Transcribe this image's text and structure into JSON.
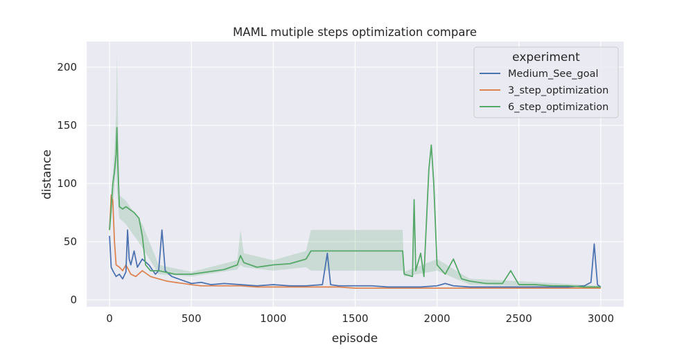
{
  "chart_data": {
    "type": "line",
    "title": "MAML mutiple steps optimization compare",
    "xlabel": "episode",
    "ylabel": "distance",
    "xlim": [
      -140,
      3140
    ],
    "ylim": [
      -6,
      222
    ],
    "xticks": [
      0,
      500,
      1000,
      1500,
      2000,
      2500,
      3000
    ],
    "yticks": [
      0,
      50,
      100,
      150,
      200
    ],
    "grid": true,
    "background": "#eaeaf2",
    "legend": {
      "title": "experiment",
      "placement": "top-right"
    },
    "series": [
      {
        "name": "Medium_See_goal",
        "color": "#4c72b0",
        "x": [
          0,
          10,
          20,
          40,
          60,
          80,
          100,
          110,
          120,
          130,
          150,
          170,
          200,
          240,
          280,
          300,
          320,
          340,
          380,
          420,
          460,
          500,
          560,
          620,
          700,
          800,
          900,
          1000,
          1100,
          1200,
          1300,
          1330,
          1350,
          1400,
          1450,
          1500,
          1600,
          1700,
          1800,
          1900,
          2000,
          2050,
          2100,
          2200,
          2300,
          2400,
          2500,
          2600,
          2700,
          2800,
          2900,
          2940,
          2960,
          2970,
          2980,
          3000
        ],
        "y": [
          55,
          28,
          25,
          20,
          22,
          18,
          24,
          60,
          35,
          30,
          42,
          28,
          35,
          30,
          22,
          25,
          60,
          25,
          20,
          18,
          16,
          14,
          15,
          13,
          14,
          13,
          12,
          13,
          12,
          12,
          13,
          40,
          13,
          12,
          12,
          12,
          12,
          11,
          11,
          11,
          12,
          14,
          12,
          11,
          11,
          11,
          11,
          11,
          11,
          11,
          12,
          15,
          48,
          30,
          13,
          11
        ]
      },
      {
        "name": "3_step_optimization",
        "color": "#dd8452",
        "x": [
          0,
          10,
          20,
          30,
          40,
          60,
          80,
          100,
          130,
          160,
          200,
          250,
          300,
          350,
          400,
          450,
          500,
          560,
          620,
          700,
          800,
          900,
          1000,
          1100,
          1200,
          1300,
          1400,
          1500,
          1600,
          1700,
          1800,
          1900,
          2000,
          2100,
          2200,
          2300,
          2400,
          2500,
          2600,
          2700,
          2800,
          2900,
          3000
        ],
        "y": [
          60,
          90,
          85,
          50,
          30,
          28,
          25,
          30,
          22,
          20,
          25,
          20,
          18,
          16,
          15,
          14,
          13,
          12,
          12,
          12,
          12,
          11,
          11,
          11,
          11,
          11,
          11,
          10,
          10,
          10,
          10,
          10,
          10,
          10,
          10,
          10,
          10,
          10,
          10,
          10,
          10,
          10,
          10
        ]
      },
      {
        "name": "6_step_optimization",
        "color": "#55a868",
        "x": [
          0,
          10,
          20,
          30,
          40,
          45,
          50,
          60,
          80,
          100,
          150,
          180,
          200,
          220,
          250,
          300,
          400,
          500,
          600,
          700,
          780,
          800,
          820,
          900,
          1000,
          1100,
          1200,
          1230,
          1300,
          1400,
          1500,
          1600,
          1700,
          1790,
          1800,
          1850,
          1860,
          1870,
          1900,
          1920,
          1950,
          1965,
          1980,
          2000,
          2050,
          2100,
          2150,
          2200,
          2300,
          2400,
          2450,
          2500,
          2600,
          2700,
          2800,
          2900,
          3000
        ],
        "y": [
          60,
          80,
          100,
          110,
          125,
          148,
          120,
          80,
          78,
          80,
          75,
          70,
          55,
          30,
          25,
          25,
          22,
          22,
          24,
          26,
          30,
          38,
          32,
          28,
          30,
          31,
          35,
          42,
          42,
          42,
          42,
          42,
          42,
          42,
          22,
          20,
          86,
          25,
          40,
          20,
          112,
          133,
          100,
          30,
          22,
          35,
          18,
          16,
          14,
          14,
          25,
          13,
          13,
          12,
          12,
          11,
          11
        ]
      }
    ],
    "bands": [
      {
        "series": "6_step_optimization",
        "x": [
          0,
          30,
          40,
          45,
          50,
          60,
          100,
          200,
          300,
          500,
          780,
          800,
          820,
          1000,
          1200,
          1230,
          1790,
          1800,
          2000,
          2200,
          2500,
          3000
        ],
        "lower": [
          55,
          95,
          115,
          95,
          85,
          70,
          65,
          45,
          22,
          20,
          26,
          30,
          28,
          25,
          28,
          25,
          25,
          20,
          25,
          13,
          12,
          10
        ],
        "upper": [
          65,
          130,
          160,
          212,
          165,
          90,
          85,
          65,
          30,
          24,
          34,
          60,
          40,
          34,
          42,
          60,
          60,
          24,
          35,
          18,
          16,
          12
        ]
      }
    ]
  }
}
